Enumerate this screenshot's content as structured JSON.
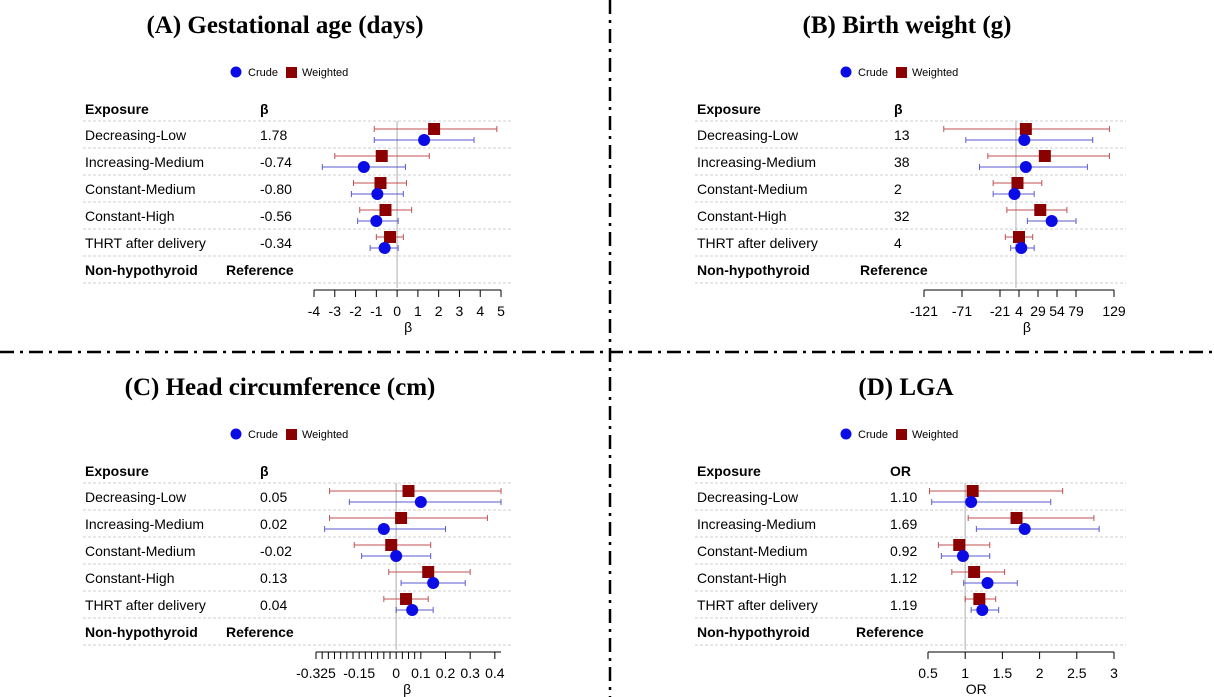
{
  "legend": {
    "crude": "Crude",
    "weighted": "Weighted"
  },
  "colors": {
    "crude": "#0b0be6",
    "crude_ci": "#5a5ad2",
    "weighted": "#8b0000",
    "weighted_ci": "#c05050",
    "refline": "#c8c8c8",
    "divider": "#000000"
  },
  "chart_data": [
    {
      "type": "forest",
      "title": "(A) Gestational age (days)",
      "xlabel": "β",
      "column_headers": {
        "label": "Exposure",
        "value": "β"
      },
      "xlim": [
        -4,
        5
      ],
      "ticks": [
        -4,
        -3,
        -2,
        -1,
        0,
        1,
        2,
        3,
        4,
        5
      ],
      "tick_labels": [
        "-4",
        "-3",
        "-2",
        "-1",
        "0",
        "1",
        "2",
        "3",
        "4",
        "5"
      ],
      "minor_ticks": [],
      "null_value": 0,
      "rows": [
        {
          "label": "Decreasing-Low",
          "value_text": "1.78",
          "weighted": {
            "est": 1.78,
            "lo": -1.1,
            "hi": 4.8
          },
          "crude": {
            "est": 1.3,
            "lo": -1.1,
            "hi": 3.7
          }
        },
        {
          "label": "Increasing-Medium",
          "value_text": "-0.74",
          "weighted": {
            "est": -0.74,
            "lo": -3.0,
            "hi": 1.55
          },
          "crude": {
            "est": -1.6,
            "lo": -3.6,
            "hi": 0.4
          }
        },
        {
          "label": "Constant-Medium",
          "value_text": "-0.80",
          "weighted": {
            "est": -0.8,
            "lo": -2.1,
            "hi": 0.45
          },
          "crude": {
            "est": -0.95,
            "lo": -2.2,
            "hi": 0.3
          }
        },
        {
          "label": "Constant-High",
          "value_text": "-0.56",
          "weighted": {
            "est": -0.56,
            "lo": -1.8,
            "hi": 0.7
          },
          "crude": {
            "est": -1.0,
            "lo": -1.9,
            "hi": 0.05
          }
        },
        {
          "label": "THRT after delivery",
          "value_text": "-0.34",
          "weighted": {
            "est": -0.34,
            "lo": -1.0,
            "hi": 0.3
          },
          "crude": {
            "est": -0.6,
            "lo": -1.3,
            "hi": 0.05
          }
        }
      ],
      "reference_row": {
        "label": "Non-hypothyroid",
        "value_text": "Reference"
      }
    },
    {
      "type": "forest",
      "title": "(B) Birth weight (g)",
      "xlabel": "β",
      "column_headers": {
        "label": "Exposure",
        "value": "β"
      },
      "xlim": [
        -121,
        129
      ],
      "ticks": [
        -121,
        -71,
        -21,
        4,
        29,
        54,
        79,
        129
      ],
      "tick_labels": [
        "-121",
        "-71",
        "-21",
        "4",
        "29",
        "54",
        "79",
        "129"
      ],
      "minor_ticks": [],
      "null_value": 0,
      "rows": [
        {
          "label": "Decreasing-Low",
          "value_text": "13",
          "weighted": {
            "est": 13,
            "lo": -95,
            "hi": 123
          },
          "crude": {
            "est": 11,
            "lo": -66,
            "hi": 101
          }
        },
        {
          "label": "Increasing-Medium",
          "value_text": "38",
          "weighted": {
            "est": 38,
            "lo": -37,
            "hi": 123
          },
          "crude": {
            "est": 13,
            "lo": -48,
            "hi": 94
          }
        },
        {
          "label": "Constant-Medium",
          "value_text": "2",
          "weighted": {
            "est": 2,
            "lo": -30,
            "hi": 34
          },
          "crude": {
            "est": -2,
            "lo": -30,
            "hi": 24
          }
        },
        {
          "label": "Constant-High",
          "value_text": "32",
          "weighted": {
            "est": 32,
            "lo": -12,
            "hi": 67
          },
          "crude": {
            "est": 47,
            "lo": 15,
            "hi": 79
          }
        },
        {
          "label": "THRT after delivery",
          "value_text": "4",
          "weighted": {
            "est": 4,
            "lo": -14,
            "hi": 22
          },
          "crude": {
            "est": 7,
            "lo": -7,
            "hi": 24
          }
        }
      ],
      "reference_row": {
        "label": "Non-hypothyroid",
        "value_text": "Reference"
      }
    },
    {
      "type": "forest",
      "title": "(C) Head circumference (cm)",
      "xlabel": "β",
      "column_headers": {
        "label": "Exposure",
        "value": "β"
      },
      "xlim": [
        -0.325,
        0.425
      ],
      "ticks": [
        -0.325,
        -0.15,
        0,
        0.1,
        0.2,
        0.3,
        0.4
      ],
      "tick_labels": [
        "-0.325",
        "-0.15",
        "0",
        "0.1",
        "0.2",
        "0.3",
        "0.4"
      ],
      "minor_ticks": [
        -0.3,
        -0.275,
        -0.25,
        -0.225,
        -0.2,
        -0.175,
        -0.125,
        -0.1,
        -0.075,
        -0.05,
        -0.025,
        0.025,
        0.05,
        0.075
      ],
      "null_value": 0,
      "rows": [
        {
          "label": "Decreasing-Low",
          "value_text": "0.05",
          "weighted": {
            "est": 0.05,
            "lo": -0.27,
            "hi": 0.425
          },
          "crude": {
            "est": 0.1,
            "lo": -0.19,
            "hi": 0.425
          }
        },
        {
          "label": "Increasing-Medium",
          "value_text": "0.02",
          "weighted": {
            "est": 0.02,
            "lo": -0.27,
            "hi": 0.37
          },
          "crude": {
            "est": -0.05,
            "lo": -0.29,
            "hi": 0.2
          }
        },
        {
          "label": "Constant-Medium",
          "value_text": "-0.02",
          "weighted": {
            "est": -0.02,
            "lo": -0.17,
            "hi": 0.14
          },
          "crude": {
            "est": 0.0,
            "lo": -0.14,
            "hi": 0.14
          }
        },
        {
          "label": "Constant-High",
          "value_text": "0.13",
          "weighted": {
            "est": 0.13,
            "lo": -0.03,
            "hi": 0.3
          },
          "crude": {
            "est": 0.15,
            "lo": 0.02,
            "hi": 0.28
          }
        },
        {
          "label": "THRT after delivery",
          "value_text": "0.04",
          "weighted": {
            "est": 0.04,
            "lo": -0.05,
            "hi": 0.13
          },
          "crude": {
            "est": 0.065,
            "lo": 0.0,
            "hi": 0.15
          }
        }
      ],
      "reference_row": {
        "label": "Non-hypothyroid",
        "value_text": "Reference"
      }
    },
    {
      "type": "forest",
      "title": "(D) LGA",
      "xlabel": "OR",
      "column_headers": {
        "label": "Exposure",
        "value": "OR"
      },
      "xlim": [
        0.5,
        3
      ],
      "ticks": [
        0.5,
        1,
        1.5,
        2,
        2.5,
        3
      ],
      "tick_labels": [
        "0.5",
        "1",
        "1.5",
        "2",
        "2.5",
        "3"
      ],
      "minor_ticks": [],
      "null_value": 1,
      "rows": [
        {
          "label": "Decreasing-Low",
          "value_text": "1.10",
          "weighted": {
            "est": 1.1,
            "lo": 0.52,
            "hi": 2.31
          },
          "crude": {
            "est": 1.08,
            "lo": 0.55,
            "hi": 2.15
          }
        },
        {
          "label": "Increasing-Medium",
          "value_text": "1.69",
          "weighted": {
            "est": 1.69,
            "lo": 1.04,
            "hi": 2.73
          },
          "crude": {
            "est": 1.8,
            "lo": 1.15,
            "hi": 2.8
          }
        },
        {
          "label": "Constant-Medium",
          "value_text": "0.92",
          "weighted": {
            "est": 0.92,
            "lo": 0.64,
            "hi": 1.33
          },
          "crude": {
            "est": 0.97,
            "lo": 0.68,
            "hi": 1.33
          }
        },
        {
          "label": "Constant-High",
          "value_text": "1.12",
          "weighted": {
            "est": 1.12,
            "lo": 0.82,
            "hi": 1.53
          },
          "crude": {
            "est": 1.3,
            "lo": 0.98,
            "hi": 1.7
          }
        },
        {
          "label": "THRT after delivery",
          "value_text": "1.19",
          "weighted": {
            "est": 1.19,
            "lo": 1.0,
            "hi": 1.41
          },
          "crude": {
            "est": 1.23,
            "lo": 1.08,
            "hi": 1.45
          }
        }
      ],
      "reference_row": {
        "label": "Non-hypothyroid",
        "value_text": "Reference"
      }
    }
  ]
}
